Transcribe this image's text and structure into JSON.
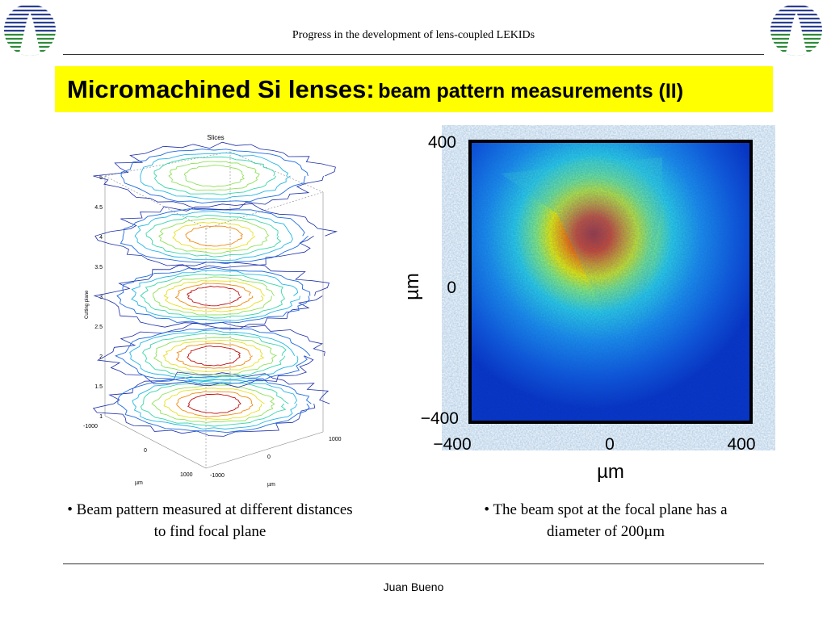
{
  "header": {
    "title": "Progress in the development of lens-coupled LEKIDs"
  },
  "slide": {
    "title_main": "Micromachined Si lenses:",
    "title_sub": "beam pattern measurements (II)"
  },
  "left_figure": {
    "title": "Slices",
    "zlabel": "Cutting plane",
    "zticks": [
      "5",
      "4.5",
      "4",
      "3.5",
      "3",
      "2.5",
      "2",
      "1.5",
      "1"
    ],
    "xticks": [
      "-1000",
      "0",
      "1000"
    ],
    "yticks": [
      "1000",
      "0",
      "-1000"
    ],
    "xlabel": "µm",
    "ylabel": "µm"
  },
  "right_figure": {
    "ylabel": "µm",
    "xlabel": "µm",
    "yticks": [
      "400",
      "0",
      "−400"
    ],
    "xticks": [
      "−400",
      "0",
      "400"
    ]
  },
  "chart_data": [
    {
      "type": "contour-slices",
      "title": "Slices",
      "zlabel": "Cutting plane",
      "xlabel": "µm",
      "ylabel": "µm",
      "xlim": [
        -1000,
        1000
      ],
      "ylim": [
        -1000,
        1000
      ],
      "zlim": [
        1,
        5
      ],
      "slice_planes": [
        1.2,
        2.0,
        3.0,
        4.0,
        5.0
      ]
    },
    {
      "type": "heatmap",
      "xlabel": "µm",
      "ylabel": "µm",
      "xlim": [
        -400,
        400
      ],
      "ylim": [
        -400,
        400
      ],
      "peak_center_um": [
        -20,
        160
      ],
      "colormap": "jet"
    }
  ],
  "captions": {
    "left": "• Beam pattern measured at different distances to find focal plane",
    "right": "• The beam spot at the focal plane has a diameter of 200µm"
  },
  "footer": {
    "author": "Juan Bueno"
  },
  "colors": {
    "title_bg": "#ffff00",
    "logo_blue": "#2a3f8f",
    "logo_green": "#2e8b3a"
  }
}
